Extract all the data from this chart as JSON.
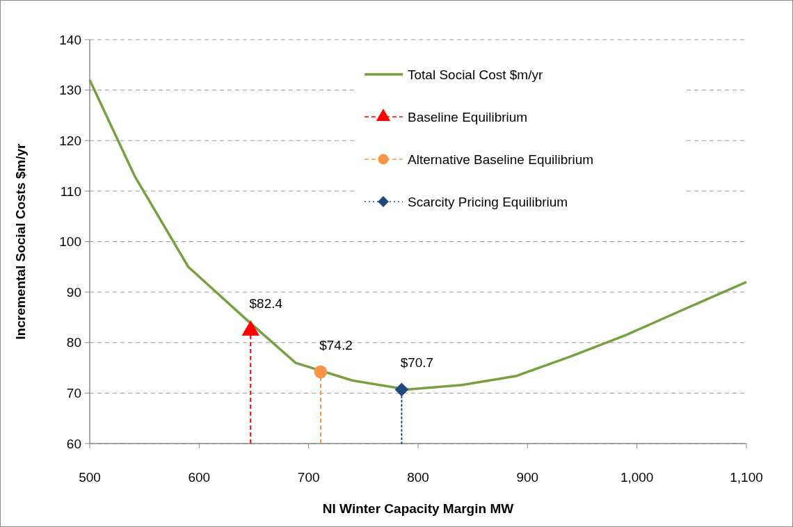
{
  "chart_data": {
    "type": "line",
    "xlabel": "NI Winter Capacity Margin MW",
    "ylabel": "Incremental Social Costs $m/yr",
    "xlim": [
      500,
      1100
    ],
    "xticks": [
      500,
      600,
      700,
      800,
      900,
      {
        "value": 1000,
        "label": "1,000"
      },
      {
        "value": 1100,
        "label": "1,100"
      }
    ],
    "ylim": [
      60,
      140
    ],
    "yticks": [
      60,
      70,
      80,
      90,
      100,
      110,
      120,
      130,
      140
    ],
    "grid": "y",
    "legend": "top right",
    "series": [
      {
        "name": "Total Social Cost $m/yr",
        "color": "#77a040",
        "marker": "none",
        "line_style": "solid",
        "x": [
          500,
          541,
          590,
          643,
          688,
          740,
          790,
          840,
          890,
          940,
          990,
          1040,
          1100
        ],
        "values": [
          132,
          113,
          95,
          84.6,
          76,
          72.5,
          70.7,
          71.6,
          73.4,
          77.3,
          81.5,
          86.3,
          92
        ]
      },
      {
        "name": "Baseline Equilibrium",
        "color": "#ff0000",
        "marker": "triangle",
        "line_style": "dashed",
        "x": [
          647,
          647
        ],
        "values": [
          60,
          82.4
        ],
        "value_labels": [
          null,
          "$82.4"
        ]
      },
      {
        "name": "Alternative Baseline Equilibrium",
        "color": "#f79646",
        "marker": "circle",
        "line_style": "dashed",
        "x": [
          711,
          711
        ],
        "values": [
          60,
          74.2
        ],
        "value_labels": [
          null,
          "$74.2"
        ]
      },
      {
        "name": "Scarcity Pricing Equilibrium",
        "color": "#1f497d",
        "marker": "diamond",
        "line_style": "dotted",
        "x": [
          785,
          785
        ],
        "values": [
          60,
          70.7
        ],
        "value_labels": [
          null,
          "$70.7"
        ]
      }
    ]
  }
}
